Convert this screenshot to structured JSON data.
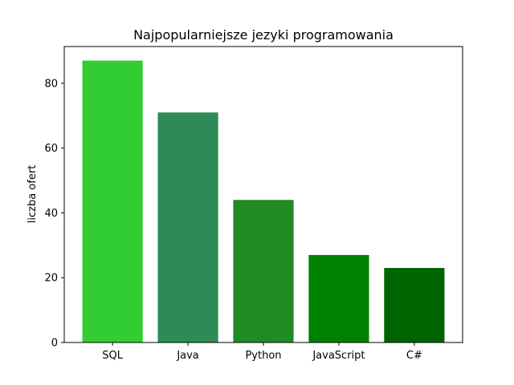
{
  "chart_data": {
    "type": "bar",
    "title": "Najpopularniejsze jezyki programowania",
    "xlabel": "",
    "ylabel": "liczba ofert",
    "categories": [
      "SQL",
      "Java",
      "Python",
      "JavaScript",
      "C#"
    ],
    "values": [
      87,
      71,
      44,
      27,
      23
    ],
    "colors": [
      "#32cd32",
      "#2e8b57",
      "#228b22",
      "#008000",
      "#006400"
    ],
    "ylim": [
      0,
      91.35
    ],
    "yticks": [
      0,
      20,
      40,
      60,
      80
    ],
    "grid": false,
    "legend": "none"
  }
}
